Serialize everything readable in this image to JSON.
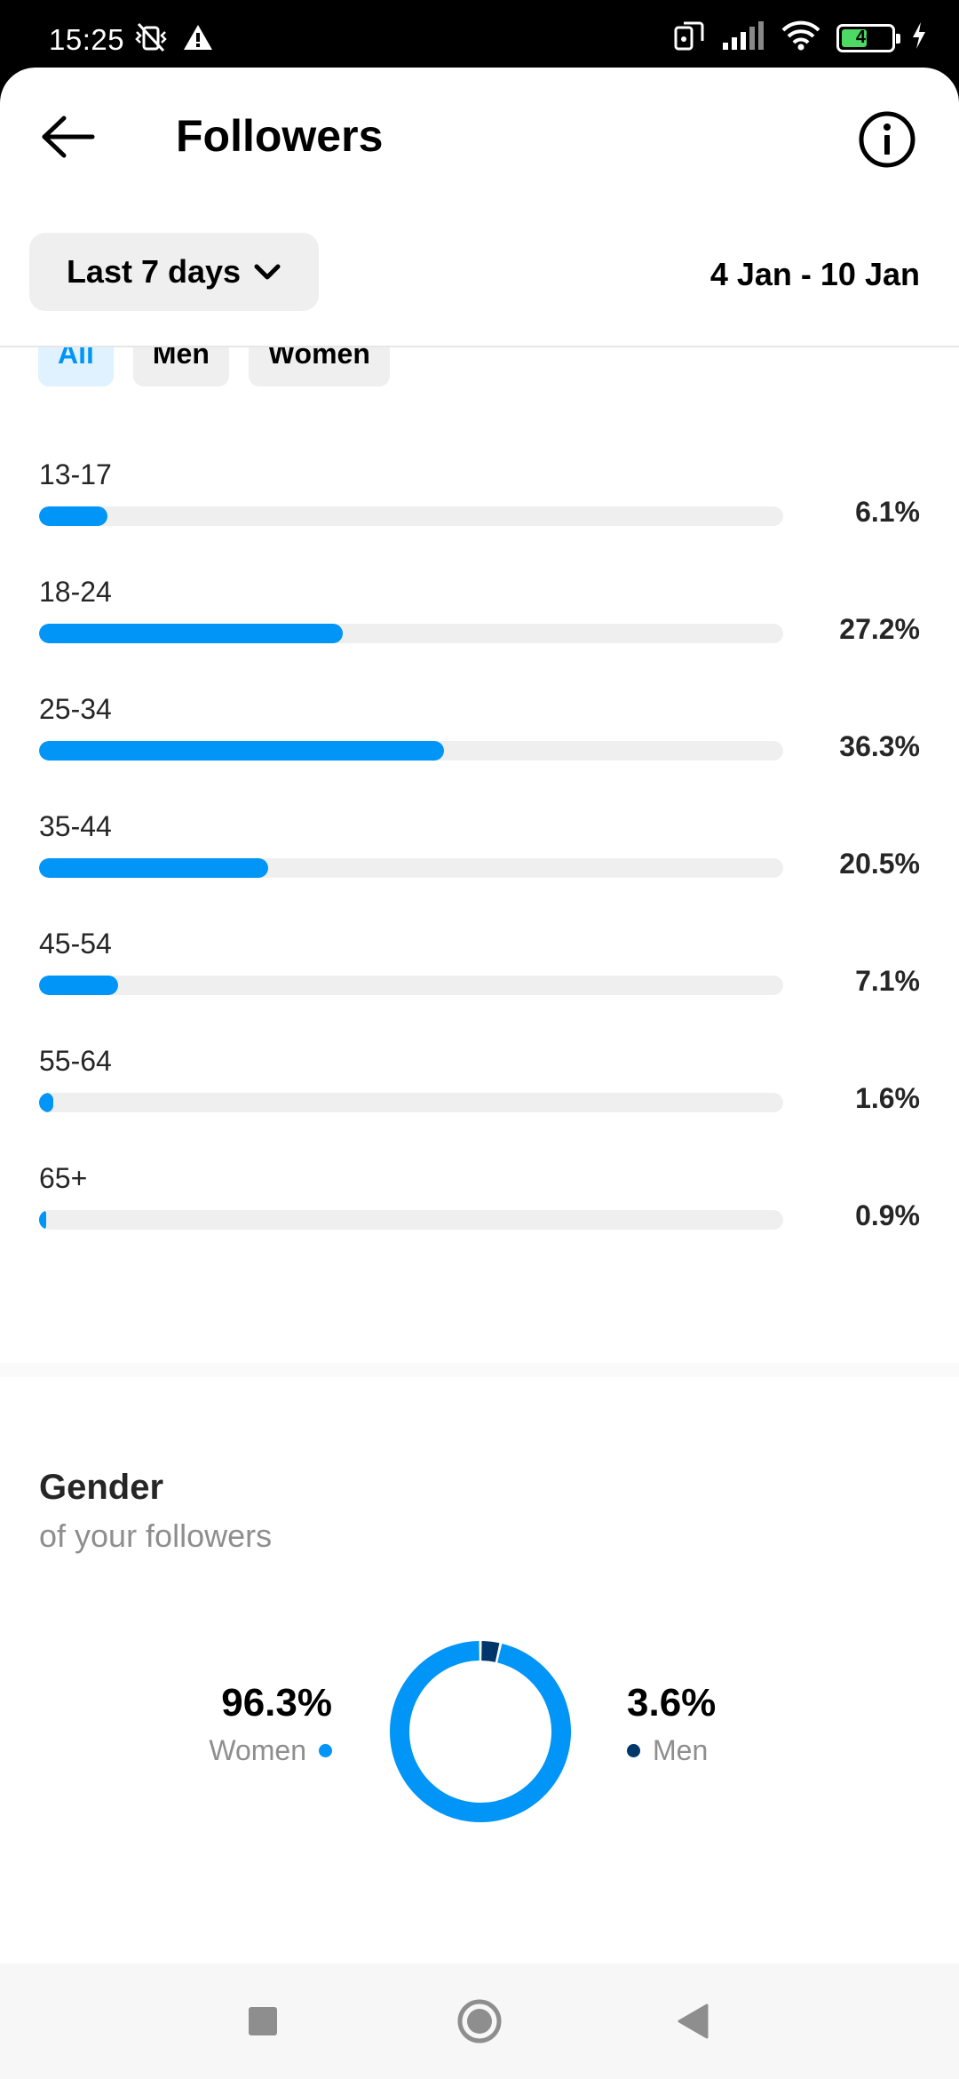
{
  "status_bar": {
    "time": "15:25",
    "battery_level": "46",
    "left_icons": [
      "mute-vibrate-icon",
      "alert-icon"
    ],
    "right_icons": [
      "screen-mirror-icon",
      "signal-icon",
      "wifi-icon",
      "battery-icon",
      "charging-icon"
    ]
  },
  "header": {
    "title": "Followers",
    "back_icon": "arrow-left-icon",
    "info_icon": "info-icon"
  },
  "filters": {
    "range_label": "Last 7 days",
    "date_range": "4 Jan - 10 Jan"
  },
  "segments": [
    {
      "label": "All",
      "active": true
    },
    {
      "label": "Men",
      "active": false
    },
    {
      "label": "Women",
      "active": false
    }
  ],
  "age_ranges": [
    {
      "label": "13-17",
      "value": 6.1,
      "display": "6.1%"
    },
    {
      "label": "18-24",
      "value": 27.2,
      "display": "27.2%"
    },
    {
      "label": "25-34",
      "value": 36.3,
      "display": "36.3%"
    },
    {
      "label": "35-44",
      "value": 20.5,
      "display": "20.5%"
    },
    {
      "label": "45-54",
      "value": 7.1,
      "display": "7.1%"
    },
    {
      "label": "55-64",
      "value": 1.6,
      "display": "1.6%"
    },
    {
      "label": "65+",
      "value": 0.9,
      "display": "0.9%"
    }
  ],
  "gender": {
    "title": "Gender",
    "subtitle": "of your followers",
    "women": {
      "value": 96.3,
      "display": "96.3%",
      "label": "Women",
      "color": "#0095f6"
    },
    "men": {
      "value": 3.6,
      "display": "3.6%",
      "label": "Men",
      "color": "#00376b"
    }
  },
  "colors": {
    "accent": "#0095f6",
    "men": "#00376b",
    "track": "#efefef"
  },
  "nav": {
    "icons": [
      "recents-square-icon",
      "home-circle-icon",
      "back-triangle-icon"
    ]
  }
}
